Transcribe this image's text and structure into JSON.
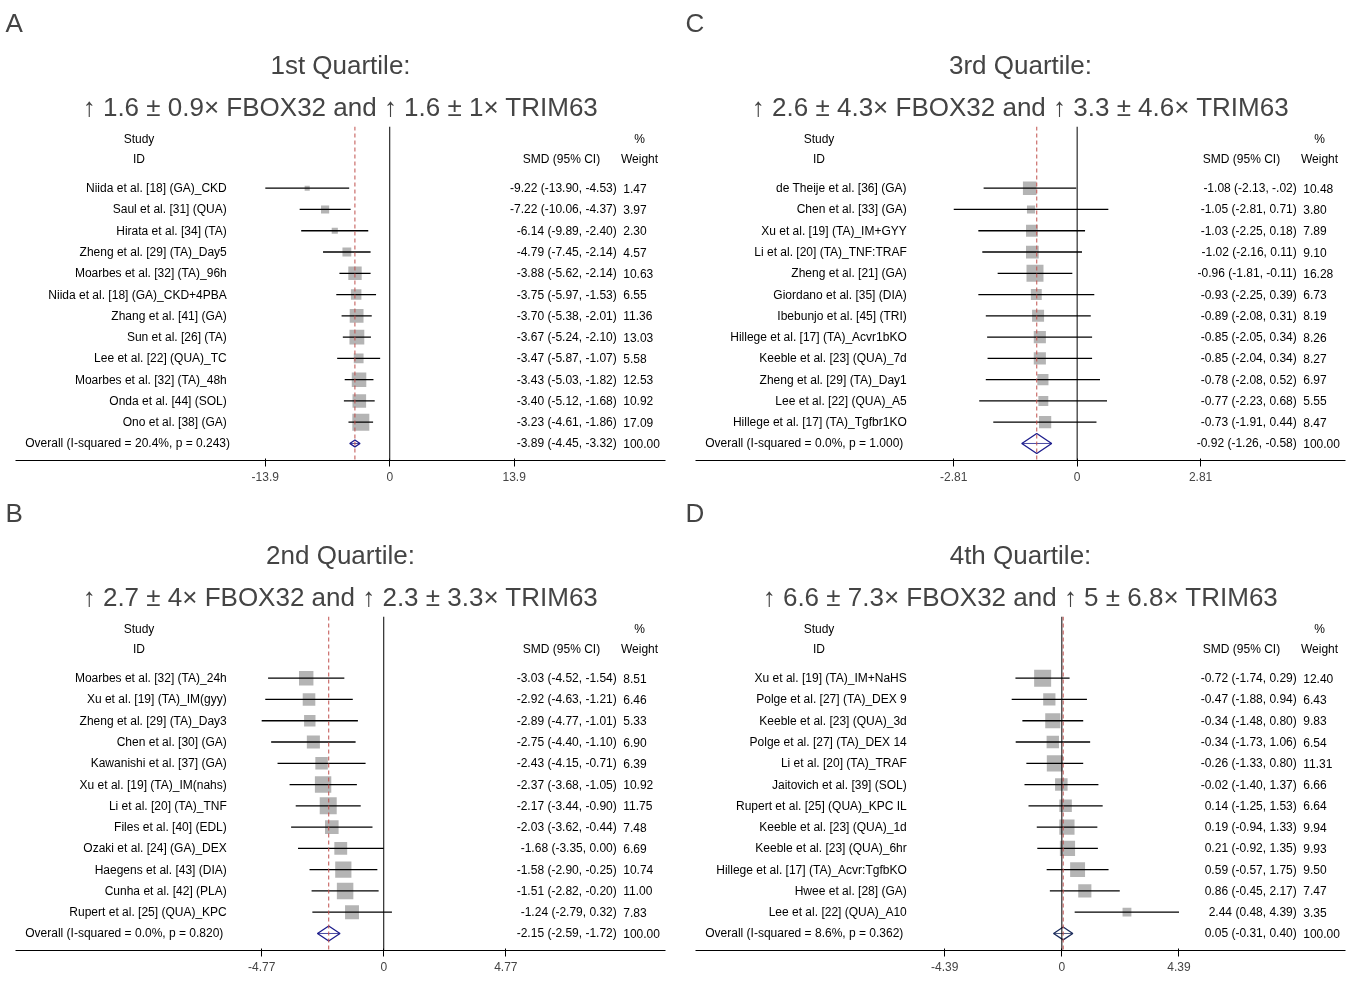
{
  "chart_data": [
    {
      "type": "scatter",
      "orientation": "horizontal",
      "title": "1st Quartile:",
      "subtitle": "↑ 1.6 ± 0.9× FBOX32 and ↑ 1.6 ± 1× TRIM63",
      "annotations": [
        "A",
        "Study",
        "ID",
        "SMD (95% CI)",
        "%",
        "Weight"
      ],
      "categories": [
        "Niida et al. [18] (GA)_CKD",
        "Saul et al. [31] (QUA)",
        "Hirata et al. [34] (TA)",
        "Zheng et al. [29] (TA)_Day5",
        "Moarbes et al. [32] (TA)_96h",
        "Niida et al. [18] (GA)_CKD+4PBA",
        "Zhang et al. [41] (GA)",
        "Sun et al. [26] (TA)",
        "Lee et al. [22] (QUA)_TC",
        "Moarbes et al. [32] (TA)_48h",
        "Onda et al. [44] (SOL)",
        "Ono et al. [38] (GA)",
        "Overall  (I-squared = 20.4%, p = 0.243)"
      ],
      "series": [
        {
          "marker": "square",
          "color": "#b4b4b4",
          "values": [
            -9.22,
            -7.22,
            -6.14,
            -4.79,
            -3.88,
            -3.75,
            -3.7,
            -3.67,
            -3.47,
            -3.43,
            -3.4,
            -3.23,
            null
          ],
          "errors": [
            [
              -13.9,
              -4.53
            ],
            [
              -10.06,
              -4.37
            ],
            [
              -9.89,
              -2.4
            ],
            [
              -7.45,
              -2.14
            ],
            [
              -5.62,
              -2.14
            ],
            [
              -5.97,
              -1.53
            ],
            [
              -5.38,
              -2.01
            ],
            [
              -5.24,
              -2.1
            ],
            [
              -5.87,
              -1.07
            ],
            [
              -5.03,
              -1.82
            ],
            [
              -5.12,
              -1.68
            ],
            [
              -4.61,
              -1.86
            ],
            null
          ],
          "sizes": [
            0.09,
            0.23,
            0.13,
            0.27,
            0.62,
            0.38,
            0.66,
            0.76,
            0.33,
            0.73,
            0.64,
            1,
            null
          ]
        },
        {
          "marker": "diamond",
          "color": "#1c1c8c",
          "values": [
            null,
            null,
            null,
            null,
            null,
            null,
            null,
            null,
            null,
            null,
            null,
            null,
            -3.89
          ],
          "errors": [
            null,
            null,
            null,
            null,
            null,
            null,
            null,
            null,
            null,
            null,
            null,
            null,
            [
              -4.45,
              -3.32
            ]
          ]
        }
      ],
      "value_labels": [
        "-9.22 (-13.90, -4.53)",
        "-7.22 (-10.06, -4.37)",
        "-6.14 (-9.89, -2.40)",
        "-4.79 (-7.45, -2.14)",
        "-3.88 (-5.62, -2.14)",
        "-3.75 (-5.97, -1.53)",
        "-3.70 (-5.38, -2.01)",
        "-3.67 (-5.24, -2.10)",
        "-3.47 (-5.87, -1.07)",
        "-3.43 (-5.03, -1.82)",
        "-3.40 (-5.12, -1.68)",
        "-3.23 (-4.61, -1.86)",
        "-3.89 (-4.45, -3.32)"
      ],
      "y2_categories": [
        "1.47",
        "3.97",
        "2.30",
        "4.57",
        "10.63",
        "6.55",
        "11.36",
        "13.03",
        "5.58",
        "12.53",
        "10.92",
        "17.09",
        "100.00"
      ],
      "xlim": [
        -41.8,
        30.8
      ],
      "xticks": [
        -13.9,
        0,
        13.9
      ],
      "ref_lines": [
        {
          "axis": "x",
          "value": 0,
          "color": "#000000",
          "line_style": "solid"
        },
        {
          "axis": "x",
          "value": -3.89,
          "color": "#c0504d",
          "line_style": "dashed"
        }
      ]
    },
    {
      "type": "scatter",
      "orientation": "horizontal",
      "title": "3rd Quartile:",
      "subtitle": "↑ 2.6 ± 4.3× FBOX32 and ↑ 3.3 ± 4.6× TRIM63",
      "annotations": [
        "C",
        "Study",
        "ID",
        "SMD (95% CI)",
        "%",
        "Weight"
      ],
      "categories": [
        "de Theije et al. [36] (GA)",
        "Chen et al. [33] (GA)",
        "Xu et al. [19] (TA)_IM+GYY",
        "Li et al. [20] (TA)_TNF:TRAF",
        "Zheng et al. [21] (GA)",
        "Giordano et al. [35] (DIA)",
        "Ibebunjo et al. [45] (TRI)",
        "Hillege et al. [17] (TA)_Acvr1bKO",
        "Keeble et al. [23] (QUA)_7d",
        "Zheng et al. [29] (TA)_Day1",
        "Lee et al. [22] (QUA)_A5",
        "Hillege et al. [17] (TA)_Tgfbr1KO",
        "Overall  (I-squared = 0.0%, p = 1.000)"
      ],
      "series": [
        {
          "marker": "square",
          "color": "#b4b4b4",
          "values": [
            -1.08,
            -1.05,
            -1.03,
            -1.02,
            -0.96,
            -0.93,
            -0.89,
            -0.85,
            -0.85,
            -0.78,
            -0.77,
            -0.73,
            null
          ],
          "errors": [
            [
              -2.13,
              -0.02
            ],
            [
              -2.81,
              0.71
            ],
            [
              -2.25,
              0.18
            ],
            [
              -2.16,
              0.11
            ],
            [
              -1.81,
              -0.11
            ],
            [
              -2.25,
              0.39
            ],
            [
              -2.08,
              0.31
            ],
            [
              -2.05,
              0.34
            ],
            [
              -2.04,
              0.34
            ],
            [
              -2.08,
              0.52
            ],
            [
              -2.23,
              0.68
            ],
            [
              -1.91,
              0.44
            ],
            null
          ],
          "sizes": [
            0.64,
            0.23,
            0.48,
            0.56,
            1,
            0.41,
            0.5,
            0.51,
            0.51,
            0.43,
            0.34,
            0.52,
            null
          ]
        },
        {
          "marker": "diamond",
          "color": "#1c1c8c",
          "values": [
            null,
            null,
            null,
            null,
            null,
            null,
            null,
            null,
            null,
            null,
            null,
            null,
            -0.92
          ],
          "errors": [
            null,
            null,
            null,
            null,
            null,
            null,
            null,
            null,
            null,
            null,
            null,
            null,
            [
              -1.26,
              -0.58
            ]
          ]
        }
      ],
      "value_labels": [
        "-1.08 (-2.13, -.02)",
        "-1.05 (-2.81, 0.71)",
        "-1.03 (-2.25, 0.18)",
        "-1.02 (-2.16, 0.11)",
        "-0.96 (-1.81, -0.11)",
        "-0.93 (-2.25, 0.39)",
        "-0.89 (-2.08, 0.31)",
        "-0.85 (-2.05, 0.34)",
        "-0.85 (-2.04, 0.34)",
        "-0.78 (-2.08, 0.52)",
        "-0.77 (-2.23, 0.68)",
        "-0.73 (-1.91, 0.44)",
        "-0.92 (-1.26, -0.58)"
      ],
      "y2_categories": [
        "10.48",
        "3.80",
        "7.89",
        "9.10",
        "16.28",
        "6.73",
        "8.19",
        "8.26",
        "8.27",
        "6.97",
        "5.55",
        "8.47",
        "100.00"
      ],
      "xlim": [
        -8.69,
        6.11
      ],
      "xticks": [
        -2.81,
        0,
        2.81
      ],
      "ref_lines": [
        {
          "axis": "x",
          "value": 0,
          "color": "#000000",
          "line_style": "solid"
        },
        {
          "axis": "x",
          "value": -0.92,
          "color": "#c0504d",
          "line_style": "dashed"
        }
      ]
    },
    {
      "type": "scatter",
      "orientation": "horizontal",
      "title": "2nd Quartile:",
      "subtitle": "↑ 2.7 ± 4× FBOX32 and ↑ 2.3 ± 3.3× TRIM63",
      "annotations": [
        "B",
        "Study",
        "ID",
        "SMD (95% CI)",
        "%",
        "Weight"
      ],
      "categories": [
        "Moarbes et al. [32] (TA)_24h",
        "Xu et al. [19] (TA)_IM(gyy)",
        "Zheng et al. [29] (TA)_Day3",
        "Chen et al. [30] (GA)",
        "Kawanishi et al. [37] (GA)",
        "Xu et al. [19] (TA)_IM(nahs)",
        "Li et al. [20] (TA)_TNF",
        "Files et al. [40] (EDL)",
        "Ozaki et al. [24] (GA)_DEX",
        "Haegens et al. [43] (DIA)",
        "Cunha et al. [42] (PLA)",
        "Rupert et al. [25] (QUA)_KPC",
        "Overall  (I-squared = 0.0%, p = 0.820)"
      ],
      "series": [
        {
          "marker": "square",
          "color": "#b4b4b4",
          "values": [
            -3.03,
            -2.92,
            -2.89,
            -2.75,
            -2.43,
            -2.37,
            -2.17,
            -2.03,
            -1.68,
            -1.58,
            -1.51,
            -1.24,
            null
          ],
          "errors": [
            [
              -4.52,
              -1.54
            ],
            [
              -4.63,
              -1.21
            ],
            [
              -4.77,
              -1.01
            ],
            [
              -4.4,
              -1.1
            ],
            [
              -4.15,
              -0.71
            ],
            [
              -3.68,
              -1.05
            ],
            [
              -3.44,
              -0.9
            ],
            [
              -3.62,
              -0.44
            ],
            [
              -3.35,
              0.0
            ],
            [
              -2.9,
              -0.25
            ],
            [
              -2.82,
              -0.2
            ],
            [
              -2.79,
              0.32
            ],
            null
          ],
          "sizes": [
            0.72,
            0.55,
            0.45,
            0.59,
            0.54,
            0.93,
            1,
            0.64,
            0.57,
            0.91,
            0.94,
            0.67,
            null
          ]
        },
        {
          "marker": "diamond",
          "color": "#1c1c8c",
          "values": [
            null,
            null,
            null,
            null,
            null,
            null,
            null,
            null,
            null,
            null,
            null,
            null,
            -2.15
          ],
          "errors": [
            null,
            null,
            null,
            null,
            null,
            null,
            null,
            null,
            null,
            null,
            null,
            null,
            [
              -2.59,
              -1.72
            ]
          ]
        }
      ],
      "value_labels": [
        "-3.03 (-4.52, -1.54)",
        "-2.92 (-4.63, -1.21)",
        "-2.89 (-4.77, -1.01)",
        "-2.75 (-4.40, -1.10)",
        "-2.43 (-4.15, -0.71)",
        "-2.37 (-3.68, -1.05)",
        "-2.17 (-3.44, -0.90)",
        "-2.03 (-3.62, -0.44)",
        "-1.68 (-3.35, 0.00)",
        "-1.58 (-2.90, -0.25)",
        "-1.51 (-2.82, -0.20)",
        "-1.24 (-2.79, 0.32)",
        "-2.15 (-2.59, -1.72)"
      ],
      "y2_categories": [
        "8.51",
        "6.46",
        "5.33",
        "6.90",
        "6.39",
        "10.92",
        "11.75",
        "7.48",
        "6.69",
        "10.74",
        "11.00",
        "7.83",
        "100.00"
      ],
      "xlim": [
        -14.39,
        11.01
      ],
      "xticks": [
        -4.77,
        0,
        4.77
      ],
      "ref_lines": [
        {
          "axis": "x",
          "value": 0,
          "color": "#000000",
          "line_style": "solid"
        },
        {
          "axis": "x",
          "value": -2.15,
          "color": "#c0504d",
          "line_style": "dashed"
        }
      ]
    },
    {
      "type": "scatter",
      "orientation": "horizontal",
      "title": "4th Quartile:",
      "subtitle": "↑ 6.6 ± 7.3× FBOX32 and ↑ 5 ± 6.8× TRIM63",
      "annotations": [
        "D",
        "Study",
        "ID",
        "SMD (95% CI)",
        "%",
        "Weight"
      ],
      "categories": [
        "Xu et al. [19] (TA)_IM+NaHS",
        "Polge et al. [27] (TA)_DEX 9",
        "Keeble et al. [23] (QUA)_3d",
        "Polge et al. [27] (TA)_DEX 14",
        "Li et al. [20] (TA)_TRAF",
        "Jaitovich et al. [39] (SOL)",
        "Rupert et al. [25] (QUA)_KPC IL",
        "Keeble et al. [23] (QUA)_1d",
        "Keeble et al. [23] (QUA)_6hr",
        "Hillege et al. [17] (TA)_Acvr:TgfbKO",
        "Hwee et al. [28] (GA)",
        "Lee et al. [22] (QUA)_A10",
        "Overall  (I-squared = 8.6%, p = 0.362)"
      ],
      "series": [
        {
          "marker": "square",
          "color": "#b4b4b4",
          "values": [
            -0.72,
            -0.47,
            -0.34,
            -0.34,
            -0.26,
            -0.02,
            0.14,
            0.19,
            0.21,
            0.59,
            0.86,
            2.44,
            null
          ],
          "errors": [
            [
              -1.74,
              0.29
            ],
            [
              -1.88,
              0.94
            ],
            [
              -1.48,
              0.8
            ],
            [
              -1.73,
              1.06
            ],
            [
              -1.33,
              0.8
            ],
            [
              -1.4,
              1.37
            ],
            [
              -1.25,
              1.53
            ],
            [
              -0.94,
              1.33
            ],
            [
              -0.92,
              1.35
            ],
            [
              -0.57,
              1.75
            ],
            [
              -0.45,
              2.17
            ],
            [
              0.48,
              4.39
            ],
            null
          ],
          "sizes": [
            1,
            0.52,
            0.79,
            0.53,
            0.91,
            0.54,
            0.54,
            0.8,
            0.8,
            0.77,
            0.6,
            0.27,
            null
          ]
        },
        {
          "marker": "diamond",
          "color": "#1c2c5c",
          "values": [
            null,
            null,
            null,
            null,
            null,
            null,
            null,
            null,
            null,
            null,
            null,
            null,
            0.05
          ],
          "errors": [
            null,
            null,
            null,
            null,
            null,
            null,
            null,
            null,
            null,
            null,
            null,
            null,
            [
              -0.31,
              0.4
            ]
          ]
        }
      ],
      "value_labels": [
        "-0.72 (-1.74, 0.29)",
        "-0.47 (-1.88, 0.94)",
        "-0.34 (-1.48, 0.80)",
        "-0.34 (-1.73, 1.06)",
        "-0.26 (-1.33, 0.80)",
        "-0.02 (-1.40, 1.37)",
        "0.14 (-1.25, 1.53)",
        "0.19 (-0.94, 1.33)",
        "0.21 (-0.92, 1.35)",
        "0.59 (-0.57, 1.75)",
        "0.86 (-0.45, 2.17)",
        "2.44 (0.48, 4.39)",
        "0.05 (-0.31, 0.40)"
      ],
      "y2_categories": [
        "12.40",
        "6.43",
        "9.83",
        "6.54",
        "11.31",
        "6.66",
        "6.64",
        "9.94",
        "9.93",
        "9.50",
        "7.47",
        "3.35",
        "100.00"
      ],
      "xlim": [
        -13.73,
        10.63
      ],
      "xticks": [
        -4.39,
        0,
        4.39
      ],
      "ref_lines": [
        {
          "axis": "x",
          "value": 0,
          "color": "#000000",
          "line_style": "solid"
        },
        {
          "axis": "x",
          "value": 0.05,
          "color": "#c0504d",
          "line_style": "dashed"
        }
      ]
    }
  ]
}
